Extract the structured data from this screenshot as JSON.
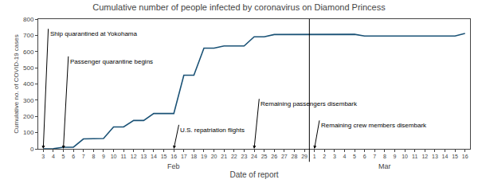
{
  "chart_data": {
    "type": "line",
    "title": "Cumulative number of people infected by coronavirus on Diamond Princess",
    "xlabel": "Date of report",
    "ylabel": "Cumulative no. of COVID-19 cases",
    "categories": [
      "3",
      "4",
      "5",
      "6",
      "7",
      "8",
      "9",
      "10",
      "11",
      "12",
      "13",
      "14",
      "15",
      "16",
      "17",
      "18",
      "19",
      "20",
      "21",
      "22",
      "23",
      "24",
      "25",
      "26",
      "27",
      "28",
      "29",
      "1",
      "2",
      "3",
      "4",
      "5",
      "6",
      "7",
      "8",
      "9",
      "10",
      "11",
      "12",
      "13",
      "14",
      "15",
      "16"
    ],
    "values": [
      0,
      1,
      10,
      10,
      61,
      64,
      64,
      135,
      135,
      175,
      175,
      218,
      218,
      218,
      454,
      454,
      621,
      621,
      634,
      634,
      634,
      691,
      691,
      705,
      705,
      705,
      705,
      706,
      706,
      706,
      706,
      706,
      696,
      696,
      696,
      696,
      696,
      696,
      696,
      696,
      696,
      696,
      712
    ],
    "color": "#1a5276",
    "ylim": [
      0,
      800
    ],
    "yticks": [
      0,
      100,
      200,
      300,
      400,
      500,
      600,
      700,
      800
    ],
    "grid": false,
    "annotations": [
      {
        "text": "Ship quarantined at Yokohama",
        "x": 0,
        "y": 740
      },
      {
        "text": "Passenger quarantine begins",
        "x": 2,
        "y": 570
      },
      {
        "text": "U.S. repatriation flights",
        "x": 13,
        "y": 148
      },
      {
        "text": "Remaining passengers disembark",
        "x": 21,
        "y": 308
      },
      {
        "text": "Remaining crew members disembark",
        "x": 27,
        "y": 175
      },
      {
        "text": "Feb",
        "x": 13
      },
      {
        "text": "Mar",
        "x": 34
      }
    ]
  }
}
